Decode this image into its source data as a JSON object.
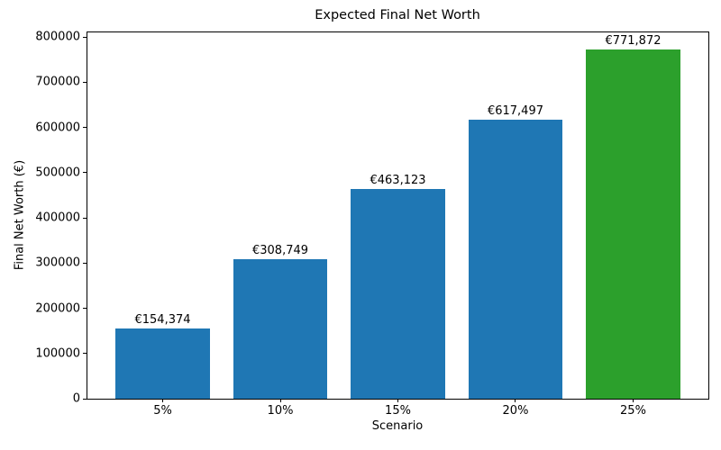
{
  "chart_data": {
    "type": "bar",
    "title": "Expected Final Net Worth",
    "xlabel": "Scenario",
    "ylabel": "Final Net Worth (€)",
    "categories": [
      "5%",
      "10%",
      "15%",
      "20%",
      "25%"
    ],
    "values": [
      154374,
      308749,
      463123,
      617497,
      771872
    ],
    "bar_value_labels": [
      "€154,374",
      "€308,749",
      "€463,123",
      "€617,497",
      "€771,872"
    ],
    "bar_colors": [
      "#1f77b4",
      "#1f77b4",
      "#1f77b4",
      "#1f77b4",
      "#2ca02c"
    ],
    "yticks": [
      0,
      100000,
      200000,
      300000,
      400000,
      500000,
      600000,
      700000,
      800000
    ],
    "ytick_labels": [
      "0",
      "100000",
      "200000",
      "300000",
      "400000",
      "500000",
      "600000",
      "700000",
      "800000"
    ],
    "ylim": [
      0,
      810000
    ],
    "grid": false,
    "legend": "none",
    "background_color": "#ffffff",
    "text_color": "#000000"
  }
}
